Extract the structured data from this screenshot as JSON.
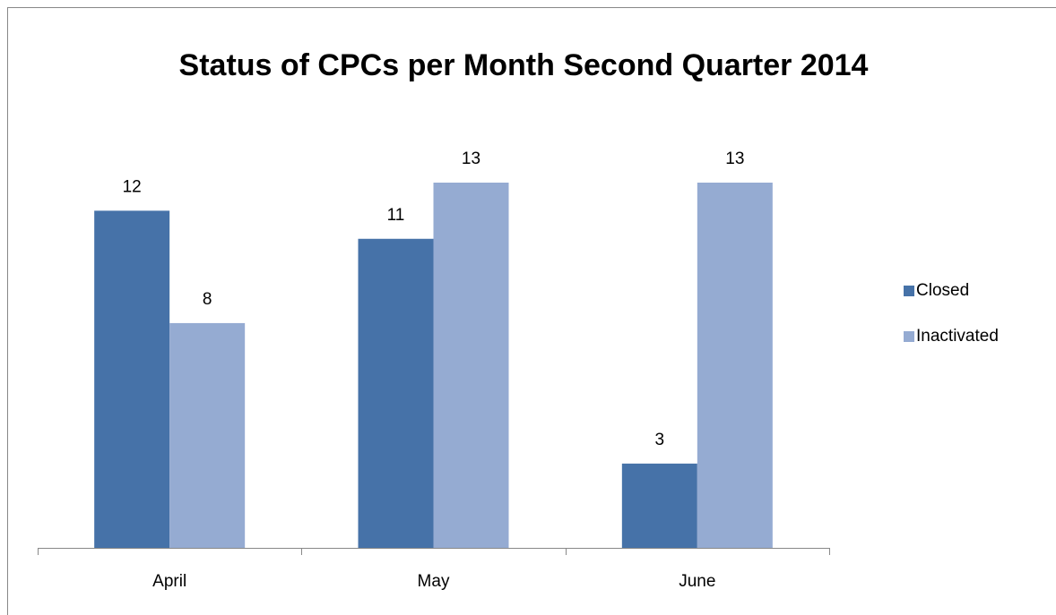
{
  "chart_data": {
    "type": "bar",
    "title": "Status of CPCs per Month Second Quarter 2014",
    "categories": [
      "April",
      "May",
      "June"
    ],
    "series": [
      {
        "name": "Closed",
        "color": "#4672a8",
        "values": [
          12,
          11,
          3
        ]
      },
      {
        "name": "Inactivated",
        "color": "#95abd2",
        "values": [
          8,
          13,
          13
        ]
      }
    ],
    "legend": "right"
  }
}
